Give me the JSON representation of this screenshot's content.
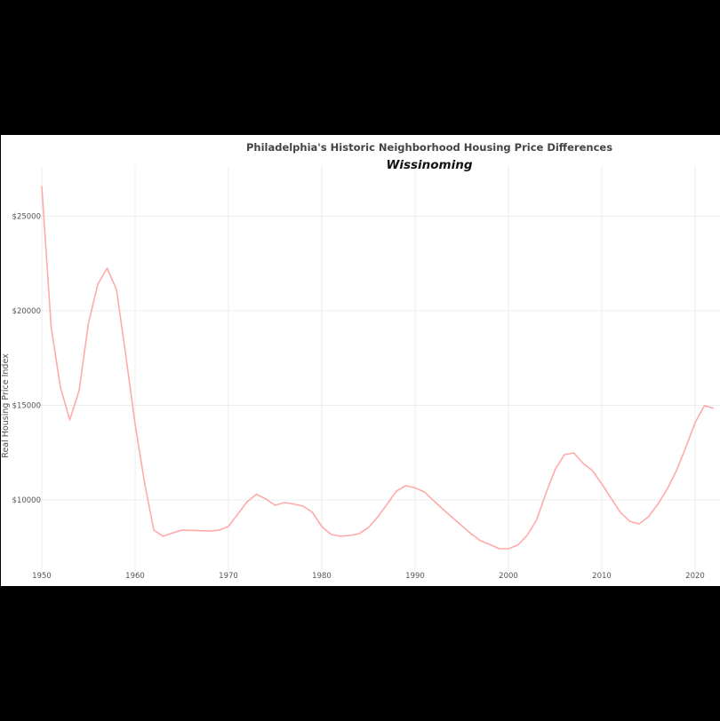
{
  "chart_data": {
    "type": "line",
    "title": "Philadelphia's Historic Neighborhood Housing Price Differences",
    "subtitle": "Wissinoming",
    "xlabel": "",
    "ylabel": "Real Housing Price Index",
    "xlim": [
      1950,
      2022
    ],
    "ylim": [
      7000,
      27200
    ],
    "grid": true,
    "legend": null,
    "x_ticks": [
      1950,
      1960,
      1970,
      1980,
      1990,
      2000,
      2010,
      2020
    ],
    "y_ticks": [
      10000,
      15000,
      20000,
      25000
    ],
    "y_tick_labels": [
      "$10000",
      "$15000",
      "$20000",
      "$25000"
    ],
    "series": [
      {
        "name": "Wissinoming",
        "color": "#ffaaaa",
        "x": [
          1950,
          1951,
          1952,
          1953,
          1954,
          1955,
          1956,
          1957,
          1958,
          1959,
          1960,
          1961,
          1962,
          1963,
          1964,
          1965,
          1966,
          1967,
          1968,
          1969,
          1970,
          1971,
          1972,
          1973,
          1974,
          1975,
          1976,
          1977,
          1978,
          1979,
          1980,
          1981,
          1982,
          1983,
          1984,
          1985,
          1986,
          1987,
          1988,
          1989,
          1990,
          1991,
          1992,
          1993,
          1994,
          1995,
          1996,
          1997,
          1998,
          1999,
          2000,
          2001,
          2002,
          2003,
          2004,
          2005,
          2006,
          2007,
          2008,
          2009,
          2010,
          2011,
          2012,
          2013,
          2014,
          2015,
          2016,
          2017,
          2018,
          2019,
          2020,
          2021,
          2022
        ],
        "values": [
          26600,
          19150,
          15950,
          14230,
          15780,
          19340,
          21400,
          22250,
          21130,
          17650,
          14000,
          10940,
          8400,
          8080,
          8250,
          8400,
          8390,
          8370,
          8350,
          8400,
          8600,
          9250,
          9900,
          10300,
          10050,
          9720,
          9860,
          9780,
          9670,
          9340,
          8590,
          8170,
          8080,
          8120,
          8210,
          8540,
          9100,
          9770,
          10470,
          10750,
          10640,
          10420,
          9950,
          9500,
          9060,
          8640,
          8210,
          7840,
          7650,
          7420,
          7420,
          7610,
          8120,
          8920,
          10330,
          11600,
          12390,
          12490,
          11930,
          11550,
          10850,
          10090,
          9340,
          8870,
          8730,
          9110,
          9770,
          10560,
          11550,
          12770,
          14090,
          14980,
          14840
        ]
      }
    ]
  }
}
